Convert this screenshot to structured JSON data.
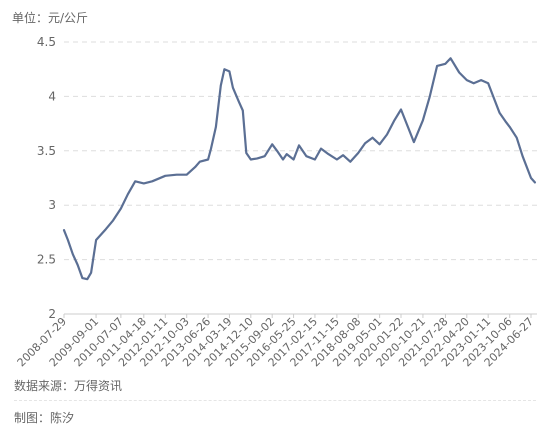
{
  "unit_label": "单位：元/公斤",
  "source_label": "数据来源：万得资讯",
  "author_label": "制图：陈汐",
  "colors": {
    "line": "#5b6f94",
    "grid": "#dddddd",
    "axis": "#cccccc",
    "text": "#666666"
  },
  "chart_data": {
    "type": "line",
    "title": "",
    "xlabel": "",
    "ylabel": "",
    "ylim": [
      2,
      4.5
    ],
    "yticks": [
      "4.5",
      "4",
      "3.5",
      "3",
      "2.5",
      "2"
    ],
    "grid": true,
    "x_tick_labels": [
      "2008-07-29",
      "2009-09-01",
      "2010-07-07",
      "2011-04-18",
      "2012-01-11",
      "2012-10-03",
      "2013-06-26",
      "2014-03-19",
      "2014-12-10",
      "2015-09-02",
      "2016-05-25",
      "2017-02-15",
      "2017-11-15",
      "2018-08-08",
      "2019-05-01",
      "2020-01-22",
      "2020-10-21",
      "2021-07-28",
      "2022-04-20",
      "2023-01-11",
      "2023-10-06",
      "2024-06-27"
    ],
    "series": [
      {
        "x": [
          "2008-07-29",
          "2008-09-15",
          "2008-11-15",
          "2009-01-15",
          "2009-03-15",
          "2009-05-15",
          "2009-07-01",
          "2009-09-01",
          "2010-01-01",
          "2010-04-01",
          "2010-07-07",
          "2010-10-01",
          "2011-01-01",
          "2011-04-18",
          "2011-08-01",
          "2012-01-11",
          "2012-06-01",
          "2012-10-03",
          "2013-01-15",
          "2013-03-15",
          "2013-06-26",
          "2013-08-01",
          "2013-10-01",
          "2013-12-01",
          "2014-01-15",
          "2014-03-19",
          "2014-05-01",
          "2014-07-15",
          "2014-09-01",
          "2014-10-15",
          "2014-12-10",
          "2015-03-01",
          "2015-06-01",
          "2015-09-02",
          "2015-11-01",
          "2016-01-15",
          "2016-03-01",
          "2016-05-25",
          "2016-08-01",
          "2016-11-01",
          "2017-02-15",
          "2017-05-01",
          "2017-08-01",
          "2017-11-15",
          "2018-02-01",
          "2018-05-01",
          "2018-08-08",
          "2018-11-01",
          "2019-02-01",
          "2019-05-01",
          "2019-08-01",
          "2019-11-01",
          "2020-01-22",
          "2020-04-01",
          "2020-07-01",
          "2020-10-21",
          "2021-01-15",
          "2021-04-15",
          "2021-07-28",
          "2021-10-01",
          "2022-01-15",
          "2022-04-20",
          "2022-07-15",
          "2022-10-15",
          "2023-01-11",
          "2023-03-15",
          "2023-06-01",
          "2023-08-15",
          "2023-10-06",
          "2024-01-01",
          "2024-03-15",
          "2024-06-27",
          "2024-08-15"
        ],
        "values": [
          2.77,
          2.68,
          2.55,
          2.45,
          2.33,
          2.32,
          2.38,
          2.68,
          2.78,
          2.86,
          2.97,
          3.1,
          3.22,
          3.2,
          3.22,
          3.27,
          3.28,
          3.28,
          3.35,
          3.4,
          3.42,
          3.52,
          3.72,
          4.1,
          4.25,
          4.23,
          4.08,
          3.95,
          3.87,
          3.48,
          3.42,
          3.43,
          3.45,
          3.56,
          3.5,
          3.42,
          3.47,
          3.42,
          3.55,
          3.45,
          3.42,
          3.52,
          3.47,
          3.42,
          3.46,
          3.4,
          3.48,
          3.57,
          3.62,
          3.56,
          3.65,
          3.78,
          3.88,
          3.75,
          3.58,
          3.78,
          4.0,
          4.28,
          4.3,
          4.35,
          4.22,
          4.15,
          4.12,
          4.15,
          4.12,
          4.0,
          3.85,
          3.77,
          3.72,
          3.62,
          3.45,
          3.25,
          3.21
        ]
      }
    ]
  }
}
